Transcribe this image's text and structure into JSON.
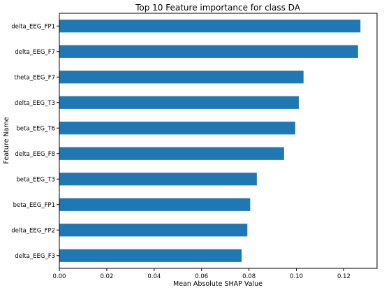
{
  "chart_data": {
    "type": "bar",
    "orientation": "horizontal",
    "title": "Top 10 Feature importance for class DA",
    "xlabel": "Mean Absolute SHAP Value",
    "ylabel": "Feature Name",
    "categories": [
      "delta_EEG_FP1",
      "delta_EEG_F7",
      "theta_EEG_F7",
      "delta_EEG_T3",
      "beta_EEG_T6",
      "delta_EEG_F8",
      "beta_EEG_T3",
      "beta_EEG_FP1",
      "delta_EEG_FP2",
      "delta_EEG_F3"
    ],
    "values": [
      0.127,
      0.126,
      0.103,
      0.101,
      0.0995,
      0.0948,
      0.0833,
      0.0805,
      0.0793,
      0.0769
    ],
    "xlim": [
      0,
      0.134
    ],
    "xticks": [
      0.0,
      0.02,
      0.04,
      0.06,
      0.08,
      0.1,
      0.12
    ],
    "xtick_labels": [
      "0.00",
      "0.02",
      "0.04",
      "0.06",
      "0.08",
      "0.10",
      "0.12"
    ],
    "grid": false,
    "bar_color": "#1f77b4"
  }
}
